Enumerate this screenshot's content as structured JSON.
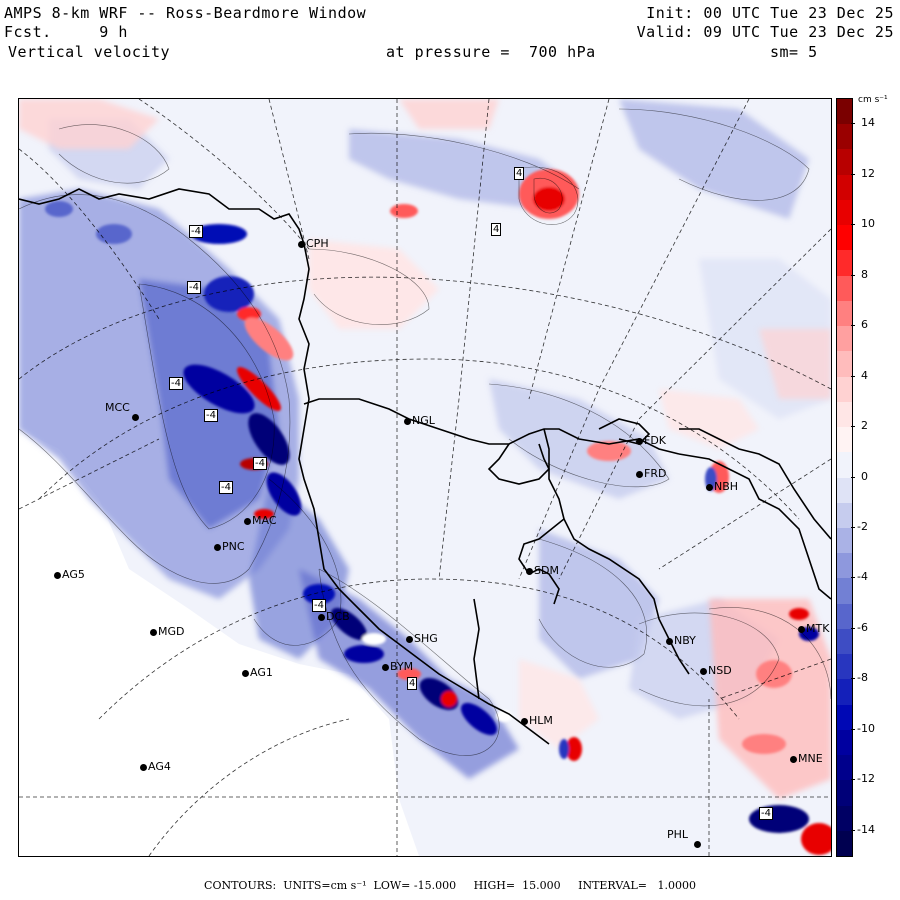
{
  "header": {
    "line1_left": "AMPS 8-km WRF -- Ross-Beardmore Window",
    "line2_left": "Fcst.     9 h",
    "line3_left": "Vertical velocity",
    "line1_right": "Init: 00 UTC Tue 23 Dec 25",
    "line2_right": "Valid: 09 UTC Tue 23 Dec 25",
    "pressure_label": "at pressure =  700 hPa",
    "smoothing": "sm= 5"
  },
  "colorbar": {
    "units_label": "cm s⁻¹",
    "tick_labels": [
      "14",
      "12",
      "10",
      "8",
      "6",
      "4",
      "2",
      "0",
      "-2",
      "-4",
      "-6",
      "-8",
      "-10",
      "-12",
      "-14"
    ],
    "tick_values": [
      14,
      12,
      10,
      8,
      6,
      4,
      2,
      0,
      -2,
      -4,
      -6,
      -8,
      -10,
      -12,
      -14
    ],
    "range": [
      -15,
      15
    ],
    "colors_top_to_bottom": [
      "#7a0000",
      "#9a0000",
      "#b80000",
      "#d20000",
      "#e80000",
      "#ff0000",
      "#ff2a2a",
      "#ff5a5a",
      "#ff8080",
      "#ffa0a0",
      "#ffbcbc",
      "#ffd2d2",
      "#ffe6e6",
      "#fff3f3",
      "#f1f3fb",
      "#dfe3f6",
      "#c6ccee",
      "#aab2e6",
      "#8e98dd",
      "#7280d4",
      "#5866cc",
      "#3e4dc4",
      "#2836bf",
      "#1420ba",
      "#0008b5",
      "#0000a0",
      "#00008c",
      "#000078",
      "#000064",
      "#000050"
    ]
  },
  "stations": [
    {
      "code": "CPH"
    },
    {
      "code": "NGL"
    },
    {
      "code": "MCC"
    },
    {
      "code": "FDK"
    },
    {
      "code": "FRD"
    },
    {
      "code": "NBH"
    },
    {
      "code": "AG5"
    },
    {
      "code": "SDM"
    },
    {
      "code": "MGD"
    },
    {
      "code": "NBY"
    },
    {
      "code": "AG1"
    },
    {
      "code": "NSD"
    },
    {
      "code": "AG4"
    },
    {
      "code": "PHL"
    },
    {
      "code": "MNE"
    },
    {
      "code": "MTK"
    },
    {
      "code": "SHG"
    },
    {
      "code": "BYM"
    },
    {
      "code": "HLM"
    },
    {
      "code": "MAC"
    },
    {
      "code": "DCB"
    },
    {
      "code": "PNC"
    }
  ],
  "contour_labels": [
    "-4",
    "-4",
    "-4",
    "-4",
    "-4",
    "-4",
    "4",
    "4",
    "4",
    "-4",
    "-4"
  ],
  "footer": {
    "contours_label": "CONTOURS:",
    "units_label": "UNITS=cm s⁻¹",
    "low_label": "LOW= -15.000",
    "high_label": "HIGH=  15.000",
    "interval_label": "INTERVAL=   1.0000"
  },
  "colors": {
    "updraft": "#e80000",
    "downdraft": "#2836bf",
    "neutral": "#f1f3fb",
    "background": "#ffffff"
  }
}
